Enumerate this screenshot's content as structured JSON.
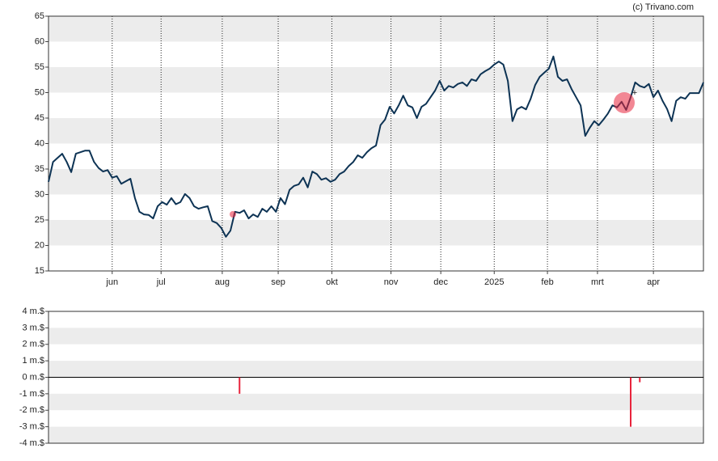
{
  "chart_data": [
    {
      "type": "line",
      "source": "(c) Trivano.com",
      "color": "#0d3354",
      "bands": true,
      "values": [
        32.5,
        36.4,
        37.2,
        38,
        36.4,
        34.4,
        38,
        38.3,
        38.6,
        38.6,
        36.4,
        35.2,
        34.5,
        34.8,
        33.3,
        33.6,
        32.1,
        32.6,
        33.1,
        29.3,
        26.6,
        26.1,
        26,
        25.3,
        27.7,
        28.5,
        28,
        29.3,
        28.1,
        28.5,
        30.1,
        29.3,
        27.7,
        27.2,
        27.5,
        27.7,
        24.8,
        24.4,
        23.4,
        21.7,
        22.9,
        26.6,
        26.4,
        26.9,
        25.3,
        26.1,
        25.6,
        27.2,
        26.6,
        27.7,
        26.6,
        29.3,
        28.1,
        30.9,
        31.7,
        32,
        33.3,
        31.4,
        34.5,
        34,
        32.9,
        33.2,
        32.5,
        32.9,
        34,
        34.5,
        35.6,
        36.4,
        37.7,
        37.2,
        38.3,
        39.1,
        39.6,
        43.6,
        44.7,
        47.2,
        45.9,
        47.5,
        49.4,
        47.5,
        47.1,
        45,
        47.2,
        47.8,
        49.1,
        50.4,
        52.3,
        50.4,
        51.3,
        51,
        51.7,
        52,
        51.3,
        52.6,
        52.3,
        53.6,
        54.2,
        54.7,
        55.5,
        56.1,
        55.5,
        52.3,
        44.4,
        46.7,
        47.2,
        46.7,
        48.8,
        51.5,
        53.1,
        53.9,
        54.7,
        57.1,
        53.1,
        52.3,
        52.6,
        50.7,
        49.1,
        47.5,
        41.5,
        43.1,
        44.4,
        43.6,
        44.7,
        45.9,
        47.5,
        47.1,
        48.2,
        46.6,
        49.1,
        52,
        51.3,
        51,
        51.7,
        49.1,
        50.4,
        48.4,
        46.8,
        44.4,
        48.4,
        49.1,
        48.8,
        49.9,
        49.9,
        49.9,
        52
      ],
      "xlim": [
        0,
        144
      ],
      "xticks": [
        {
          "value": 14,
          "label": "jun"
        },
        {
          "value": 24.75,
          "label": "jul"
        },
        {
          "value": 38.2,
          "label": "aug"
        },
        {
          "value": 50.5,
          "label": "sep"
        },
        {
          "value": 62.3,
          "label": "okt"
        },
        {
          "value": 75.3,
          "label": "nov"
        },
        {
          "value": 86.25,
          "label": "dec"
        },
        {
          "value": 98,
          "label": "2025"
        },
        {
          "value": 109.7,
          "label": "feb"
        },
        {
          "value": 120.7,
          "label": "mrt"
        },
        {
          "value": 133,
          "label": "apr"
        }
      ],
      "ylim": [
        15,
        65
      ],
      "yticks": [
        15,
        20,
        25,
        30,
        35,
        40,
        45,
        50,
        55,
        60,
        65
      ]
    },
    {
      "type": "bar",
      "color": "#e8243c",
      "bands": true,
      "x": [
        42,
        128,
        130
      ],
      "values": [
        -1,
        -3,
        -0.3
      ],
      "xlim": [
        0,
        144
      ],
      "ylim": [
        -4,
        4
      ],
      "yticks": [
        {
          "value": 4,
          "label": "4 m.$"
        },
        {
          "value": 3,
          "label": "3 m.$"
        },
        {
          "value": 2,
          "label": "2 m.$"
        },
        {
          "value": 1,
          "label": "1 m.$"
        },
        {
          "value": 0,
          "label": "0 m.$"
        },
        {
          "value": -1,
          "label": "-1 m.$"
        },
        {
          "value": -2,
          "label": "-2 m.$"
        },
        {
          "value": -3,
          "label": "-3 m.$"
        },
        {
          "value": -4,
          "label": "-4 m.$"
        }
      ]
    }
  ]
}
